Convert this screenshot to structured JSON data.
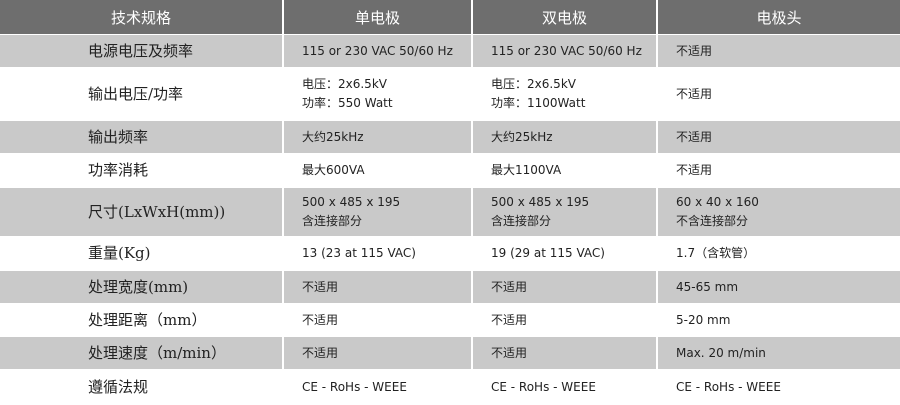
{
  "table": {
    "header": [
      "技术规格",
      "单电极",
      "双电极",
      "电极头"
    ],
    "rows": [
      [
        [
          "电源电压及频率"
        ],
        [
          "115 or 230 VAC 50/60 Hz"
        ],
        [
          "115 or 230 VAC 50/60 Hz"
        ],
        [
          "不适用"
        ]
      ],
      [
        [
          "输出电压/功率"
        ],
        [
          "电压：2x6.5kV",
          "功率：550 Watt"
        ],
        [
          "电压：2x6.5kV",
          "功率：1100Watt"
        ],
        [
          "不适用"
        ]
      ],
      [
        [
          "输出频率"
        ],
        [
          "大约25kHz"
        ],
        [
          "大约25kHz"
        ],
        [
          "不适用"
        ]
      ],
      [
        [
          "功率消耗"
        ],
        [
          "最大600VA"
        ],
        [
          "最大1100VA"
        ],
        [
          "不适用"
        ]
      ],
      [
        [
          "尺寸(LxWxH(mm))"
        ],
        [
          "500 x 485 x 195",
          "含连接部分"
        ],
        [
          "500 x 485 x 195",
          "含连接部分"
        ],
        [
          "60 x 40 x 160",
          "不含连接部分"
        ]
      ],
      [
        [
          "重量(Kg)"
        ],
        [
          "13 (23 at 115 VAC)"
        ],
        [
          "19 (29 at 115 VAC)"
        ],
        [
          "1.7（含软管）"
        ]
      ],
      [
        [
          "处理宽度(mm)"
        ],
        [
          "不适用"
        ],
        [
          "不适用"
        ],
        [
          "45-65 mm"
        ]
      ],
      [
        [
          "处理距离（mm）"
        ],
        [
          "不适用"
        ],
        [
          "不适用"
        ],
        [
          "5-20 mm"
        ]
      ],
      [
        [
          "处理速度（m/min）"
        ],
        [
          "不适用"
        ],
        [
          "不适用"
        ],
        [
          "Max.  20 m/min"
        ]
      ],
      [
        [
          "遵循法规"
        ],
        [
          "CE - RoHs - WEEE"
        ],
        [
          "CE - RoHs - WEEE"
        ],
        [
          "CE - RoHs - WEEE"
        ]
      ]
    ]
  }
}
